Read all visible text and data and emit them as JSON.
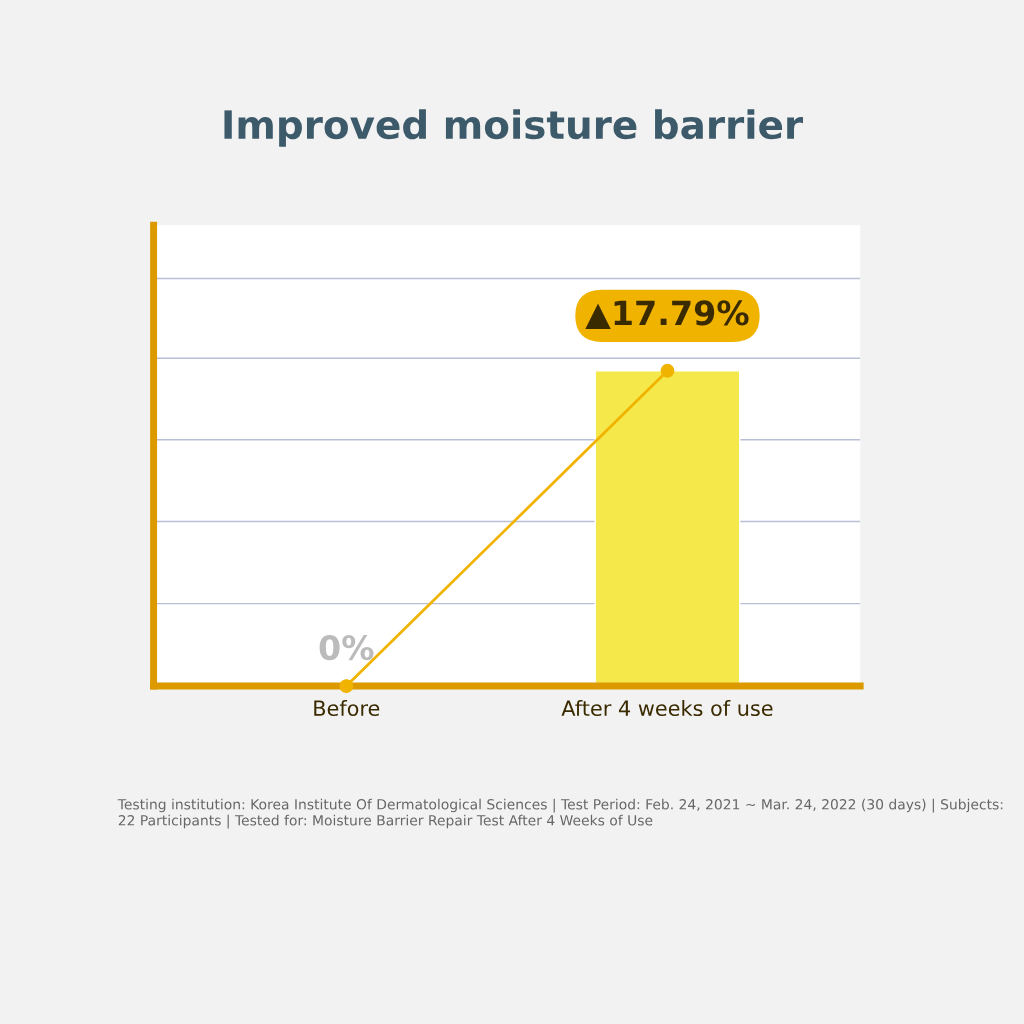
{
  "chart_data": {
    "type": "line",
    "title": "Improved moisture barrier",
    "categories": [
      "Before",
      "After 4 weeks of use"
    ],
    "series": [
      {
        "type": "bar",
        "color": "#f5e84a",
        "values": [
          null,
          17.79
        ]
      },
      {
        "color": "#f0b400",
        "values": [
          0,
          17.79
        ],
        "value_labels": [
          "0%",
          "▲17.79%"
        ]
      }
    ],
    "marker": "circle",
    "ylim": [
      0,
      26
    ],
    "yticks": [
      {
        "value": 4.65,
        "label": null
      },
      {
        "value": 9.29,
        "label": null
      },
      {
        "value": 13.9,
        "label": null
      },
      {
        "value": 18.5,
        "label": null
      },
      {
        "value": 23.0,
        "label": null
      }
    ],
    "grid": "y",
    "tick_labels": "x",
    "annotations": [
      "Testing institution: Korea Institute Of Dermatological Sciences | Test Period: Feb. 24, 2021 ~ Mar. 24, 2022 (30 days) | Subjects: 22 Participants | Tested for: Moisture Barrier Repair Test After 4 Weeks of Use"
    ]
  }
}
